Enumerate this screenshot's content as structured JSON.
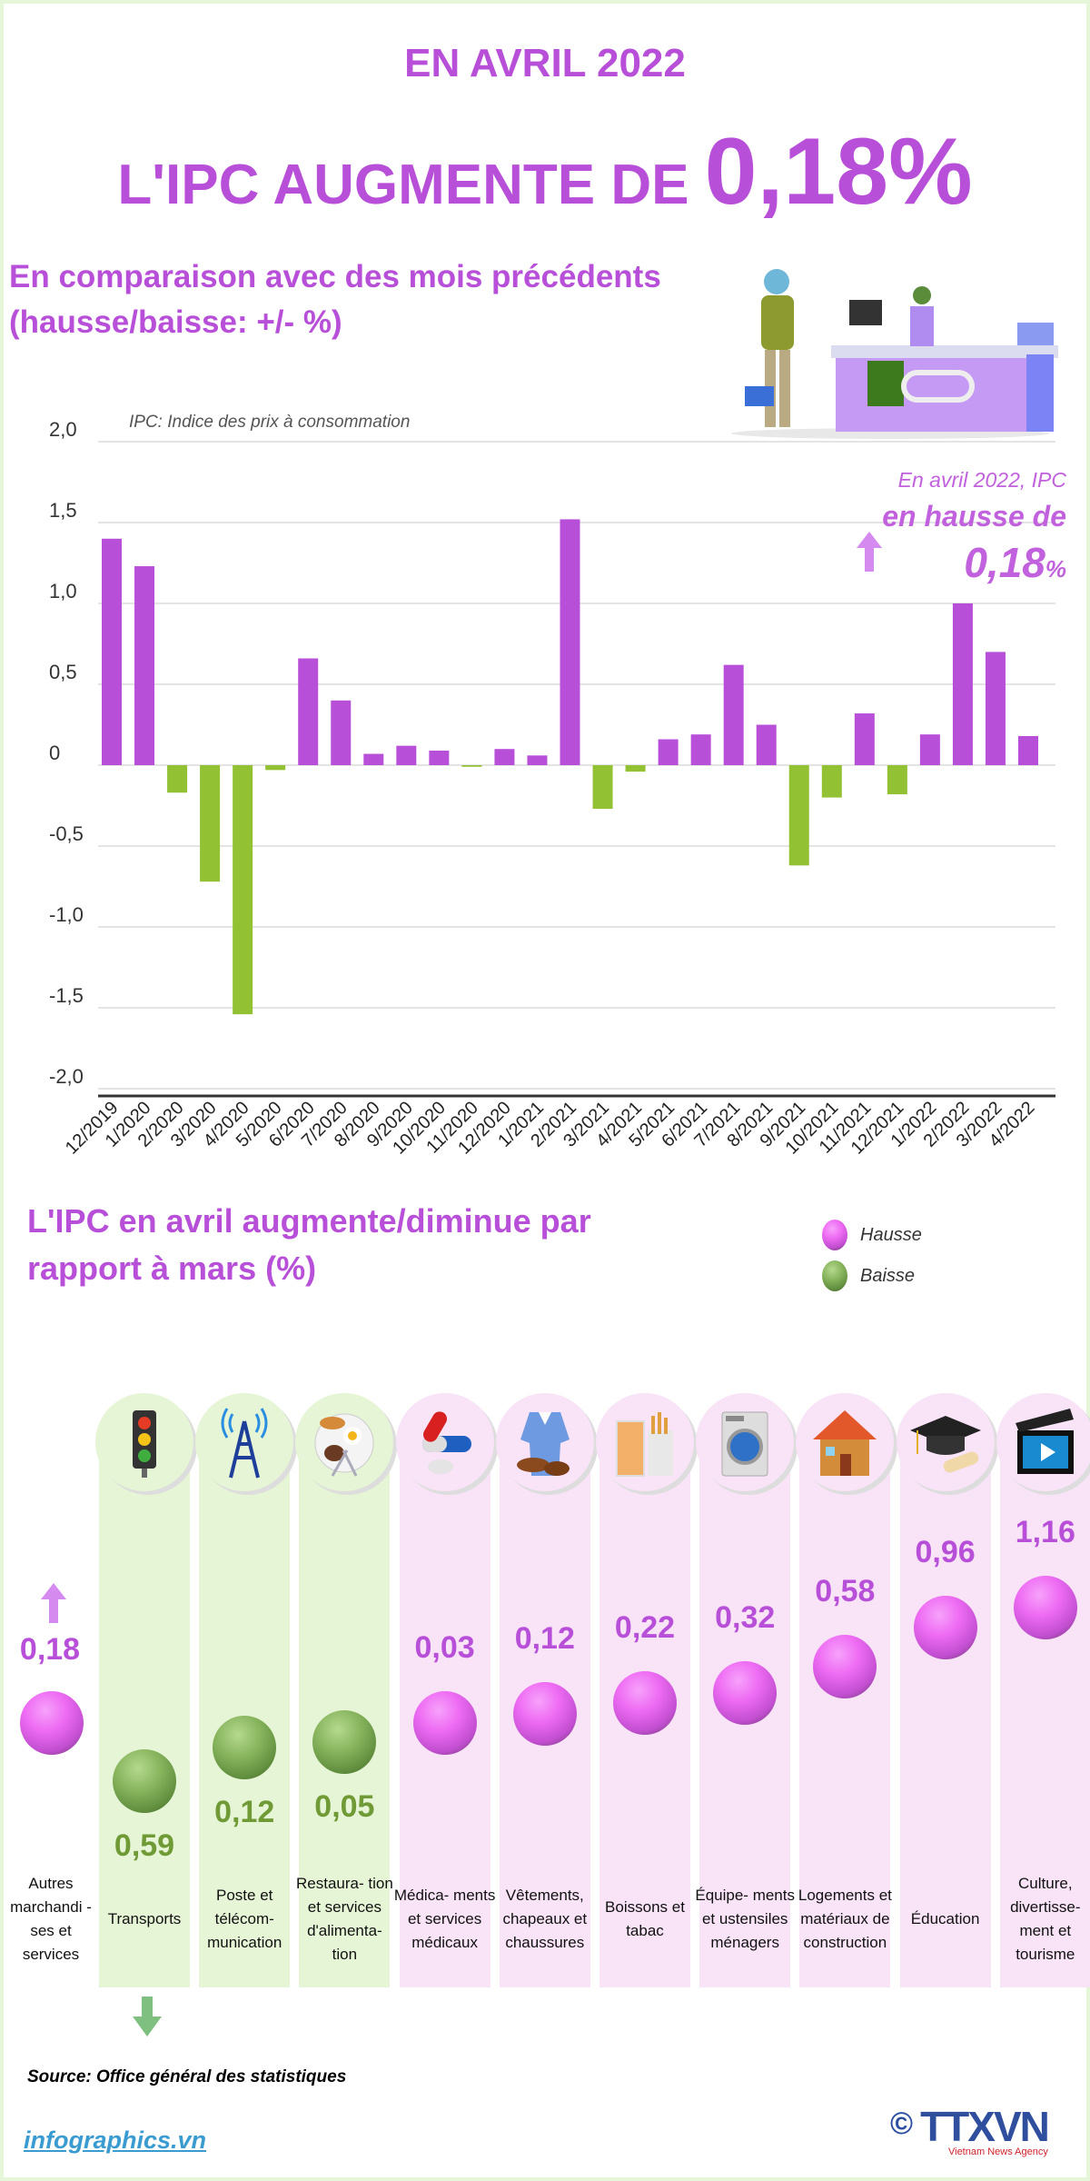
{
  "header": {
    "line1": "EN AVRIL 2022",
    "line2_prefix": "L'IPC AUGMENTE DE ",
    "line2_value": "0,18%"
  },
  "subtitle": {
    "line1": "En comparaison avec des mois précédents",
    "line2": "(hausse/baisse: +/- %)"
  },
  "colors": {
    "accent": "#b84fd8",
    "increase": "#b84fd8",
    "decrease": "#93c134",
    "increase_col": "#f8e3f7",
    "decrease_col": "#e6f5d6"
  },
  "chart_data": {
    "type": "bar",
    "note": "IPC: Indice des prix à consommation",
    "categories": [
      "12/2019",
      "1/2020",
      "2/2020",
      "3/2020",
      "4/2020",
      "5/2020",
      "6/2020",
      "7/2020",
      "8/2020",
      "9/2020",
      "10/2020",
      "11/2020",
      "12/2020",
      "1/2021",
      "2/2021",
      "3/2021",
      "4/2021",
      "5/2021",
      "6/2021",
      "7/2021",
      "8/2021",
      "9/2021",
      "10/2021",
      "11/2021",
      "12/2021",
      "1/2022",
      "2/2022",
      "3/2022",
      "4/2022"
    ],
    "values": [
      1.4,
      1.23,
      -0.17,
      -0.72,
      -1.54,
      -0.03,
      0.66,
      0.4,
      0.07,
      0.12,
      0.09,
      -0.01,
      0.1,
      0.06,
      1.52,
      -0.27,
      -0.04,
      0.16,
      0.19,
      0.62,
      0.25,
      -0.62,
      -0.2,
      0.32,
      -0.18,
      0.19,
      1.0,
      0.7,
      0.18
    ],
    "ylim": [
      -2.0,
      2.0
    ],
    "yticks": [
      "2,0",
      "1,5",
      "1,0",
      "0,5",
      "0",
      "-0,5",
      "-1,0",
      "-1,5",
      "-2,0"
    ],
    "grid": true,
    "annotation": {
      "line1": "En avril 2022, IPC",
      "line2": "en hausse de",
      "value": "0,18",
      "unit": "%"
    }
  },
  "section2": {
    "title_line1": "L'IPC en avril augmente/diminue par",
    "title_line2": "rapport à mars (%)",
    "legend": [
      {
        "label": "Hausse",
        "color": "#ee6cf3"
      },
      {
        "label": "Baisse",
        "color": "#86b35c"
      }
    ],
    "overall": {
      "label": "Autres marchandi -ses et services",
      "value": "0,18",
      "direction": "up"
    },
    "groups": [
      {
        "label": "Transports",
        "value": "0,59",
        "direction": "down",
        "icon": "traffic-light-icon"
      },
      {
        "label": "Poste et télécom- munication",
        "value": "0,12",
        "direction": "down",
        "icon": "antenna-icon"
      },
      {
        "label": "Restaura- tion et services d'alimenta- tion",
        "value": "0,05",
        "direction": "down",
        "icon": "food-plate-icon"
      },
      {
        "label": "Médica- ments et services médicaux",
        "value": "0,03",
        "direction": "up",
        "icon": "pill-icon"
      },
      {
        "label": "Vêtements, chapeaux et chaussures",
        "value": "0,12",
        "direction": "up",
        "icon": "clothing-icon"
      },
      {
        "label": "Boissons et tabac",
        "value": "0,22",
        "direction": "up",
        "icon": "drink-tobacco-icon"
      },
      {
        "label": "Équipe- ments et ustensiles ménagers",
        "value": "0,32",
        "direction": "up",
        "icon": "washing-machine-icon"
      },
      {
        "label": "Logements et matériaux de construction",
        "value": "0,58",
        "direction": "up",
        "icon": "house-icon"
      },
      {
        "label": "Éducation",
        "value": "0,96",
        "direction": "up",
        "icon": "graduation-cap-icon"
      },
      {
        "label": "Culture, divertisse- ment et tourisme",
        "value": "1,16",
        "direction": "up",
        "icon": "clapperboard-icon"
      }
    ]
  },
  "footer": {
    "source": "Source: Office général des statistiques",
    "site": "infographics.vn",
    "logo": "TTXVN",
    "logo_sub": "Vietnam News Agency",
    "copyright": "©"
  }
}
